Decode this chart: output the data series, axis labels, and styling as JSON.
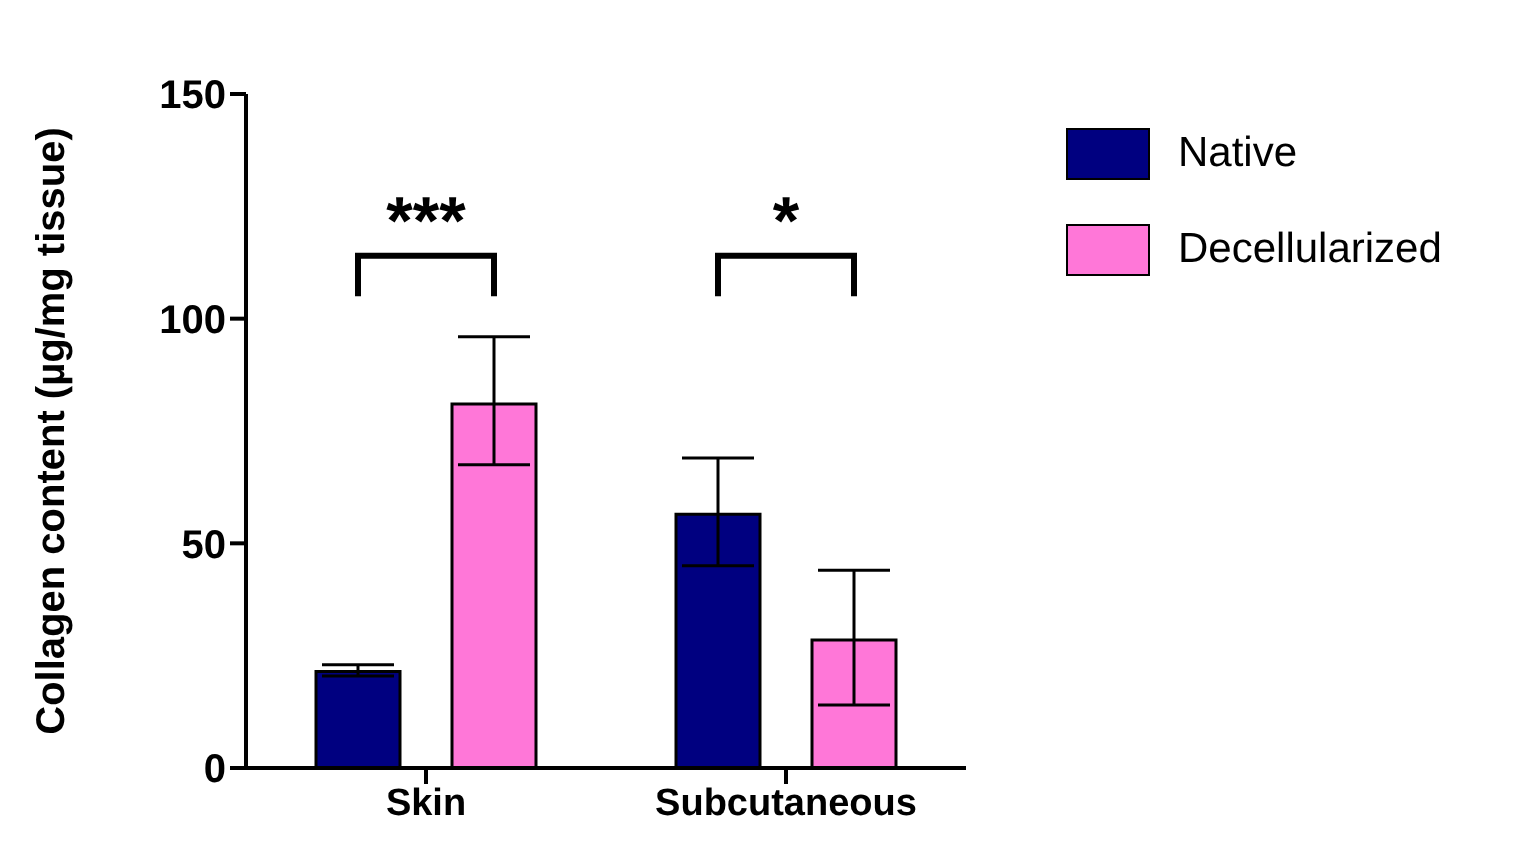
{
  "chart_data": {
    "type": "bar",
    "ylabel": "Collagen content (µg/mg tissue)",
    "categories": [
      "Skin",
      "Subcutaneous"
    ],
    "series": [
      {
        "name": "Native",
        "color": "#000080",
        "values": [
          21.5,
          56.5
        ],
        "errors": [
          [
            20.5,
            23
          ],
          [
            45,
            69
          ]
        ]
      },
      {
        "name": "Decellularized",
        "color": "#ff77d8",
        "values": [
          81,
          28.5
        ],
        "errors": [
          [
            67.5,
            96
          ],
          [
            14,
            44
          ]
        ]
      }
    ],
    "ylim": [
      0,
      150
    ],
    "yticks": [
      0,
      50,
      100,
      150
    ],
    "grid": false,
    "legend": "right",
    "annotations": [
      "***",
      "*"
    ]
  }
}
